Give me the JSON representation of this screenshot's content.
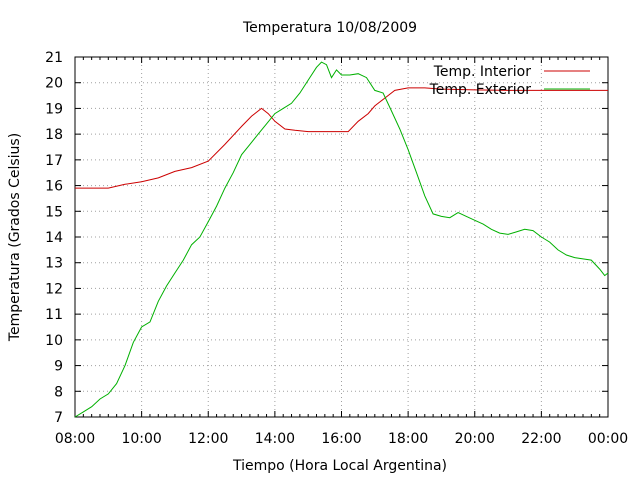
{
  "chart_data": {
    "type": "line",
    "title": "Temperatura 10/08/2009",
    "xlabel": "Tiempo (Hora Local Argentina)",
    "ylabel": "Temperatura (Grados Celsius)",
    "xlim": [
      8,
      24
    ],
    "ylim": [
      7,
      21
    ],
    "xticks": [
      {
        "value": 8,
        "label": "08:00"
      },
      {
        "value": 10,
        "label": "10:00"
      },
      {
        "value": 12,
        "label": "12:00"
      },
      {
        "value": 14,
        "label": "14:00"
      },
      {
        "value": 16,
        "label": "16:00"
      },
      {
        "value": 18,
        "label": "18:00"
      },
      {
        "value": 20,
        "label": "20:00"
      },
      {
        "value": 22,
        "label": "22:00"
      },
      {
        "value": 24,
        "label": "00:00"
      }
    ],
    "yticks": [
      7,
      8,
      9,
      10,
      11,
      12,
      13,
      14,
      15,
      16,
      17,
      18,
      19,
      20,
      21
    ],
    "grid": true,
    "legend_position": "top-right",
    "series": [
      {
        "name": "Temp. Interior",
        "color": "#cc0000",
        "x": [
          8.0,
          9.0,
          9.5,
          10.0,
          10.5,
          11.0,
          11.5,
          12.0,
          12.5,
          13.0,
          13.3,
          13.6,
          13.8,
          14.0,
          14.3,
          14.6,
          15.0,
          15.5,
          16.0,
          16.2,
          16.5,
          16.8,
          17.0,
          17.3,
          17.6,
          18.0,
          18.5,
          19.0,
          20.0,
          21.0,
          22.0,
          23.0,
          24.0
        ],
        "y": [
          15.9,
          15.9,
          16.05,
          16.15,
          16.3,
          16.55,
          16.7,
          16.95,
          17.6,
          18.3,
          18.7,
          19.0,
          18.8,
          18.5,
          18.2,
          18.15,
          18.1,
          18.1,
          18.1,
          18.1,
          18.5,
          18.8,
          19.1,
          19.4,
          19.7,
          19.8,
          19.8,
          19.75,
          19.72,
          19.7,
          19.7,
          19.7,
          19.7
        ]
      },
      {
        "name": "Temp. Exterior",
        "color": "#00b000",
        "x": [
          8.0,
          8.25,
          8.5,
          8.75,
          9.0,
          9.25,
          9.5,
          9.75,
          10.0,
          10.25,
          10.5,
          10.75,
          11.0,
          11.25,
          11.5,
          11.75,
          12.0,
          12.25,
          12.5,
          12.75,
          13.0,
          13.25,
          13.5,
          13.75,
          14.0,
          14.25,
          14.5,
          14.75,
          15.0,
          15.25,
          15.4,
          15.55,
          15.7,
          15.85,
          16.0,
          16.25,
          16.5,
          16.75,
          17.0,
          17.25,
          17.5,
          17.75,
          18.0,
          18.25,
          18.5,
          18.75,
          19.0,
          19.25,
          19.5,
          19.75,
          20.0,
          20.25,
          20.5,
          20.75,
          21.0,
          21.25,
          21.5,
          21.75,
          22.0,
          22.25,
          22.5,
          22.75,
          23.0,
          23.25,
          23.5,
          23.75,
          23.9,
          24.0
        ],
        "y": [
          7.0,
          7.2,
          7.4,
          7.7,
          7.9,
          8.3,
          9.0,
          9.9,
          10.5,
          10.7,
          11.5,
          12.1,
          12.6,
          13.1,
          13.7,
          14.0,
          14.6,
          15.2,
          15.9,
          16.5,
          17.2,
          17.6,
          18.0,
          18.4,
          18.8,
          19.0,
          19.2,
          19.6,
          20.1,
          20.6,
          20.8,
          20.7,
          20.2,
          20.5,
          20.3,
          20.3,
          20.35,
          20.2,
          19.7,
          19.6,
          18.9,
          18.2,
          17.4,
          16.5,
          15.6,
          14.9,
          14.8,
          14.75,
          14.95,
          14.8,
          14.65,
          14.5,
          14.3,
          14.15,
          14.1,
          14.2,
          14.3,
          14.25,
          14.0,
          13.8,
          13.5,
          13.3,
          13.2,
          13.15,
          13.1,
          12.75,
          12.5,
          12.6
        ]
      }
    ]
  }
}
